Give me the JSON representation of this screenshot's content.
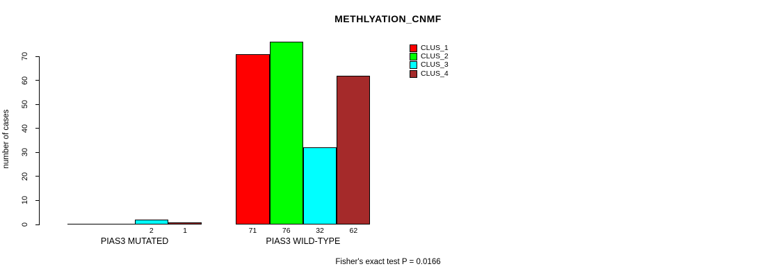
{
  "chart_data": {
    "type": "bar",
    "title": "METHLYATION_CNMF",
    "ylabel": "number of cases",
    "ylim": [
      0,
      70
    ],
    "yticks": [
      0,
      10,
      20,
      30,
      40,
      50,
      60,
      70
    ],
    "grid": false,
    "legend_position": "top-right",
    "groups": [
      "PIAS3 MUTATED",
      "PIAS3 WILD-TYPE"
    ],
    "series": [
      {
        "name": "CLUS_1",
        "color": "#ff0000",
        "values": [
          0,
          71
        ]
      },
      {
        "name": "CLUS_2",
        "color": "#00ff00",
        "values": [
          0,
          76
        ]
      },
      {
        "name": "CLUS_3",
        "color": "#00ffff",
        "values": [
          2,
          32
        ]
      },
      {
        "name": "CLUS_4",
        "color": "#a52a2a",
        "values": [
          1,
          62
        ]
      }
    ],
    "bar_labels": [
      [
        "",
        "",
        "2",
        "1"
      ],
      [
        "71",
        "76",
        "32",
        "62"
      ]
    ],
    "footnote": "Fisher's exact test P = 0.0166"
  }
}
